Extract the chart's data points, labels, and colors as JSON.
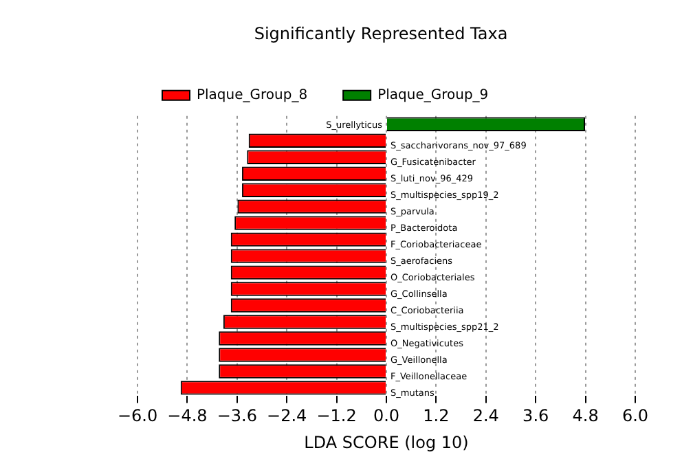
{
  "chart_data": {
    "type": "bar",
    "orientation": "horizontal",
    "title": "Significantly Represented Taxa",
    "xlabel": "LDA SCORE (log 10)",
    "categories": [
      "S_urellyticus",
      "S_saccharivorans_nov_97_689",
      "G_Fusicatenibacter",
      "S_luti_nov_96_429",
      "S_multispecies_spp19_2",
      "S_parvula",
      "P_Bacteroidota",
      "F_Coriobacteriaceae",
      "S_aerofaciens",
      "O_Coriobacteriales",
      "G_Collinsella",
      "C_Coriobacteriia",
      "S_multispecies_spp21_2",
      "O_Negativicutes",
      "G_Veillonella",
      "F_Veillonellaceae",
      "S_mutans"
    ],
    "series": [
      {
        "name": "Plaque_Group_8",
        "color": "#ff0000",
        "values": [
          null,
          -3.32,
          -3.36,
          -3.48,
          -3.48,
          -3.59,
          -3.66,
          -3.75,
          -3.75,
          -3.75,
          -3.75,
          -3.75,
          -3.93,
          -4.04,
          -4.04,
          -4.04,
          -4.96
        ]
      },
      {
        "name": "Plaque_Group_9",
        "color": "#008000",
        "values": [
          4.79,
          null,
          null,
          null,
          null,
          null,
          null,
          null,
          null,
          null,
          null,
          null,
          null,
          null,
          null,
          null,
          null
        ]
      }
    ],
    "xlim": [
      -6,
      6
    ],
    "xticks": [
      {
        "value": -6,
        "label": "−6.0"
      },
      {
        "value": -4.8,
        "label": "−4.8"
      },
      {
        "value": -3.6,
        "label": "−3.6"
      },
      {
        "value": -2.4,
        "label": "−2.4"
      },
      {
        "value": -1.2,
        "label": "−1.2"
      },
      {
        "value": 0,
        "label": "0.0"
      },
      {
        "value": 1.2,
        "label": "1.2"
      },
      {
        "value": 2.4,
        "label": "2.4"
      },
      {
        "value": 3.6,
        "label": "3.6"
      },
      {
        "value": 4.8,
        "label": "4.8"
      },
      {
        "value": 6,
        "label": "6.0"
      }
    ],
    "grid": "x",
    "legend": "top left"
  }
}
